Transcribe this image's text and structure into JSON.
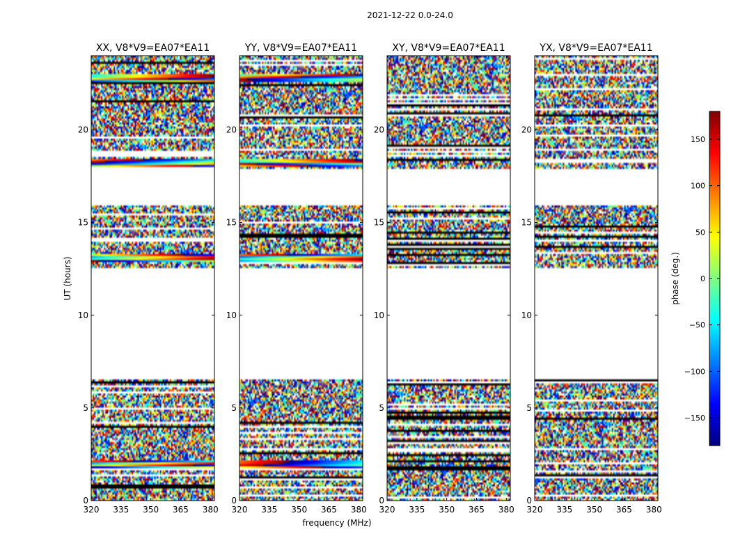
{
  "figure": {
    "suptitle": "2021-12-22 0.0-24.0",
    "xlabel": "frequency (MHz)",
    "ylabel": "UT (hours)"
  },
  "chart_data": {
    "type": "heatmap",
    "title": "2021-12-22 0.0-24.0",
    "xlabel": "frequency (MHz)",
    "ylabel": "UT (hours)",
    "xlim": [
      320,
      382
    ],
    "ylim": [
      0,
      24
    ],
    "xticks": [
      320,
      335,
      350,
      365,
      380
    ],
    "yticks": [
      0,
      5,
      10,
      15,
      20
    ],
    "flagged_ut_ranges": [
      [
        6.5,
        12.6
      ],
      [
        15.9,
        17.9
      ]
    ],
    "panels": [
      {
        "title": "XX, V8*V9=EA07*EA11",
        "polarization": "XX",
        "baseline": "V8*V9=EA07*EA11",
        "coherent_bands_ut": [
          2.0,
          13.1,
          18.2,
          22.8
        ]
      },
      {
        "title": "YY, V8*V9=EA07*EA11",
        "polarization": "YY",
        "baseline": "V8*V9=EA07*EA11",
        "coherent_bands_ut": [
          2.0,
          13.1,
          18.2,
          22.8
        ]
      },
      {
        "title": "XY, V8*V9=EA07*EA11",
        "polarization": "XY",
        "baseline": "V8*V9=EA07*EA11",
        "coherent_bands_ut": []
      },
      {
        "title": "YX, V8*V9=EA07*EA11",
        "polarization": "YX",
        "baseline": "V8*V9=EA07*EA11",
        "coherent_bands_ut": []
      }
    ],
    "colorbar": {
      "label": "phase (deg.)",
      "range": [
        -180,
        180
      ],
      "ticks": [
        150,
        100,
        50,
        0,
        -50,
        -100,
        -150
      ],
      "tick_labels": [
        "150",
        "100",
        "50",
        "0",
        "−50",
        "−100",
        "−150"
      ],
      "colormap": "jet",
      "colors": [
        "#00007f",
        "#0000ff",
        "#007fff",
        "#00ffff",
        "#7fff7f",
        "#ffff00",
        "#ff7f00",
        "#ff0000",
        "#7f0000"
      ]
    }
  }
}
